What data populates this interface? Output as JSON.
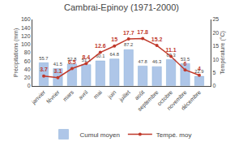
{
  "chart_data": {
    "type": "bar",
    "title": "Cambrai-Epinoy (1971-2000)",
    "categories": [
      "janvier",
      "février",
      "mars",
      "avril",
      "mai",
      "juin",
      "juillet",
      "août",
      "septembre",
      "octobre",
      "novembre",
      "décembre"
    ],
    "series": [
      {
        "name": "Cumul moyen",
        "type": "bar",
        "color": "#aec6e8",
        "values": [
          55.7,
          41.5,
          52.8,
          51.1,
          60.1,
          64.8,
          87.2,
          47.8,
          46.3,
          63.3,
          53.5,
          22.9
        ]
      },
      {
        "name": "Tempé. moy",
        "type": "line",
        "axis": "y2",
        "color": "#c0392b",
        "marker": "circle",
        "values": [
          3.7,
          3.1,
          6.5,
          8.4,
          12.6,
          15,
          17.7,
          17.8,
          15.2,
          11.1,
          6,
          4
        ]
      }
    ],
    "ylabel": "Précipitations (mm)",
    "y2label": "Température (°C)",
    "ylim": [
      0,
      160
    ],
    "yticks": [
      0,
      20,
      40,
      60,
      80,
      100,
      120,
      140,
      160
    ],
    "y2lim": [
      0,
      25
    ],
    "y2ticks": [
      0,
      5,
      10,
      15,
      20,
      25
    ],
    "data_labels": true,
    "legend": "bottom",
    "grid": false
  }
}
